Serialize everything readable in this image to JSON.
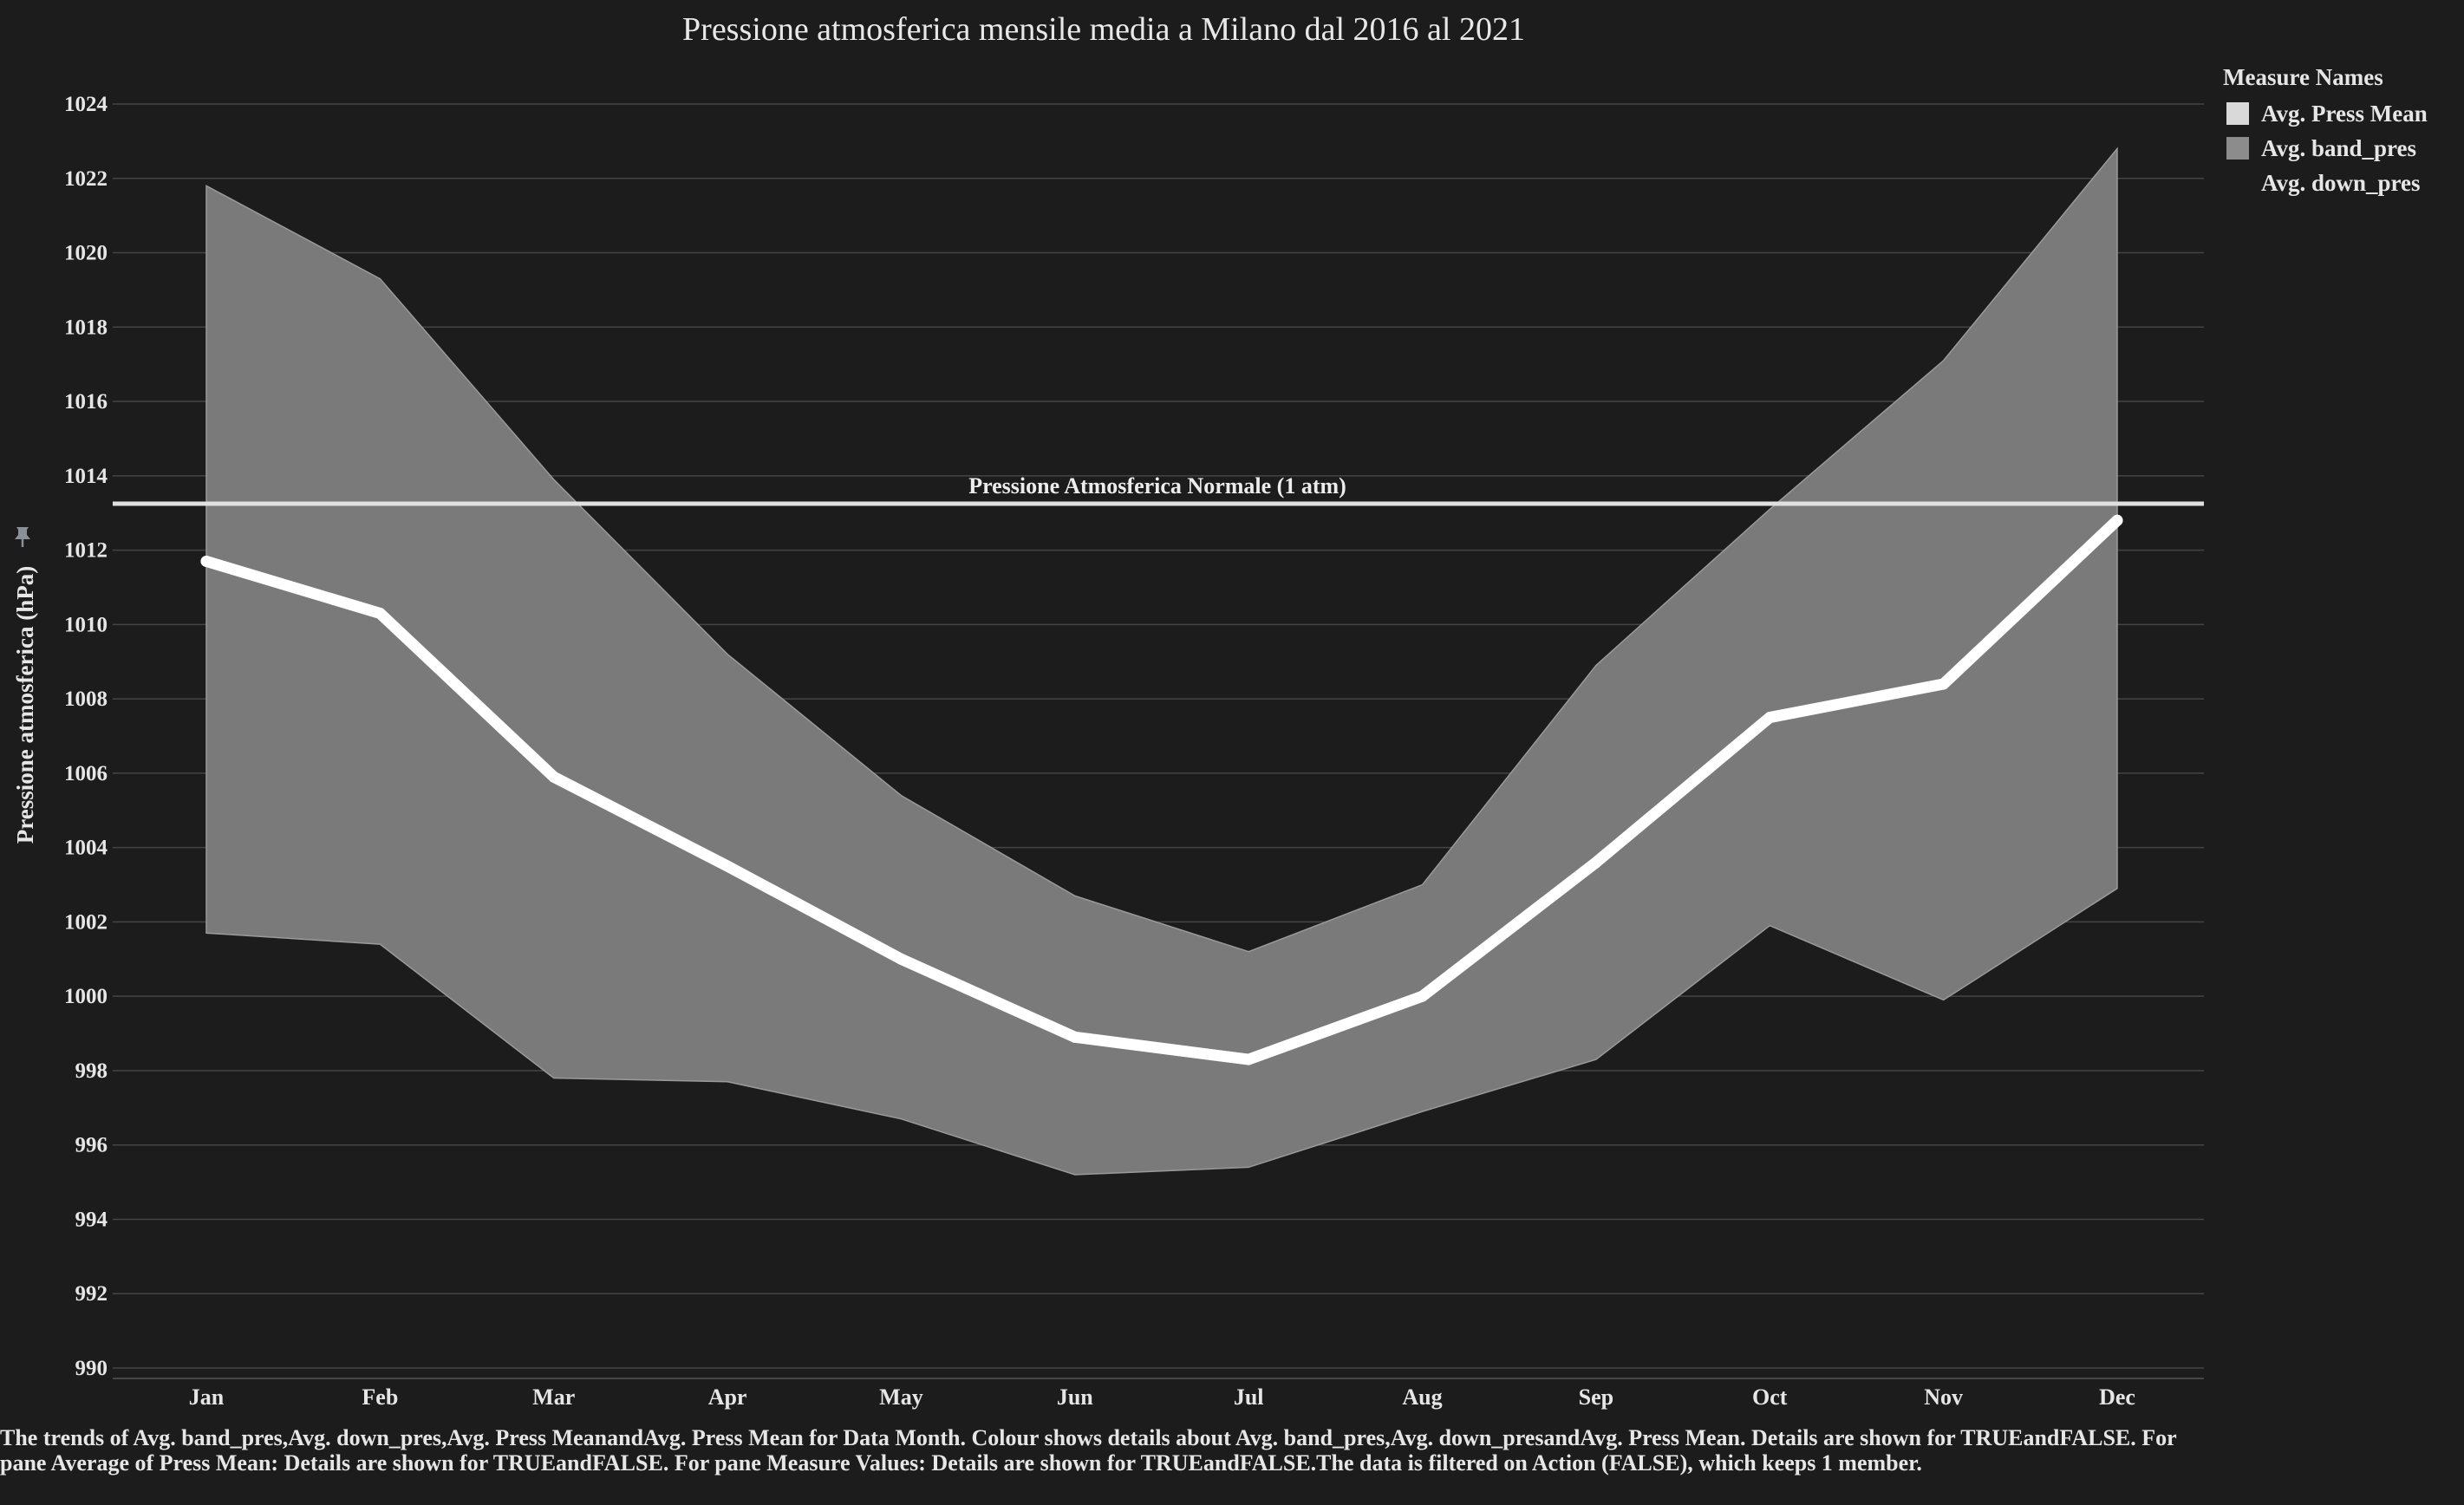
{
  "chart_data": {
    "type": "area",
    "title": "Pressione atmosferica mensile media a Milano dal 2016 al 2021",
    "xlabel": "",
    "ylabel": "Pressione atmosferica (hPa)",
    "ylim": [
      990,
      1024
    ],
    "yticks": [
      990,
      992,
      994,
      996,
      998,
      1000,
      1002,
      1004,
      1006,
      1008,
      1010,
      1012,
      1014,
      1016,
      1018,
      1020,
      1022,
      1024
    ],
    "categories": [
      "Jan",
      "Feb",
      "Mar",
      "Apr",
      "May",
      "Jun",
      "Jul",
      "Aug",
      "Sep",
      "Oct",
      "Nov",
      "Dec"
    ],
    "grid": "horizontal",
    "legend_position": "top-right",
    "series": [
      {
        "name": "Avg. Press Mean",
        "kind": "line",
        "color": "#ffffff",
        "values": [
          1011.7,
          1010.3,
          1005.9,
          1003.5,
          1001.0,
          998.9,
          998.3,
          1000.0,
          1003.6,
          1007.5,
          1008.4,
          1012.8
        ]
      },
      {
        "name": "Avg. band_pres",
        "kind": "band-upper",
        "color": "#7a7a7a",
        "values": [
          1021.8,
          1019.3,
          1013.9,
          1009.2,
          1005.4,
          1002.7,
          1001.2,
          1003.0,
          1008.9,
          1013.1,
          1017.1,
          1022.8
        ]
      },
      {
        "name": "Avg. down_pres",
        "kind": "band-lower",
        "color": "#1c1c1c",
        "values": [
          1001.7,
          1001.4,
          997.8,
          997.7,
          996.7,
          995.2,
          995.4,
          996.9,
          998.3,
          1001.9,
          999.9,
          1002.9
        ]
      }
    ],
    "reference_line": {
      "label": "Pressione Atmosferica Normale (1 atm)",
      "value": 1013.25
    }
  },
  "legend": {
    "title": "Measure Names",
    "items": [
      {
        "label": "Avg. Press Mean",
        "color": "#d9d9d9"
      },
      {
        "label": "Avg. band_pres",
        "color": "#8c8c8c"
      },
      {
        "label": "Avg. down_pres",
        "color": "#1c1c1c"
      }
    ]
  },
  "pin_icon": "pin-icon",
  "footer": {
    "text": "The trends of Avg. band_pres,Avg. down_pres,Avg. Press MeanandAvg. Press Mean for Data Month. Colour shows details about Avg. band_pres,Avg. down_presandAvg. Press Mean. Details are shown for TRUEandFALSE. For pane Average of Press Mean: Details are shown for TRUEandFALSE. For pane Measure Values: Details are shown for TRUEandFALSE.The data is filtered on Action (FALSE), which keeps 1 member."
  }
}
